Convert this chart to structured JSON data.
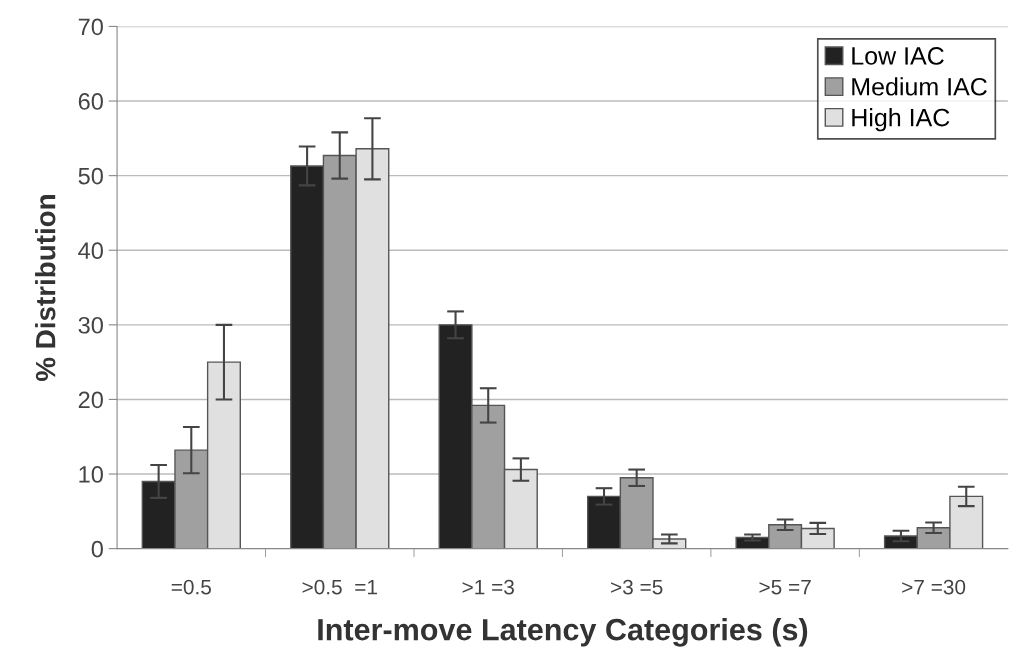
{
  "chart_data": {
    "type": "bar",
    "xlabel": "Inter-move Latency Categories (s)",
    "ylabel": "% Distribution",
    "categories": [
      "=0.5",
      ">0.5  =1",
      ">1 =3",
      ">3 =5",
      ">5 =7",
      ">7 =30"
    ],
    "series": [
      {
        "name": "Low IAC",
        "color": "#222222",
        "values": [
          9,
          51.3,
          30,
          7,
          1.5,
          1.7
        ],
        "errors": [
          2.2,
          2.6,
          1.8,
          1.1,
          0.4,
          0.7
        ]
      },
      {
        "name": "Medium IAC",
        "color": "#a0a0a0",
        "values": [
          13.2,
          52.7,
          19.2,
          9.5,
          3.2,
          2.8
        ],
        "errors": [
          3.1,
          3.1,
          2.3,
          1.1,
          0.7,
          0.7
        ]
      },
      {
        "name": "High IAC",
        "color": "#e0e0e0",
        "values": [
          25,
          53.6,
          10.6,
          1.3,
          2.7,
          7.0
        ],
        "errors": [
          5,
          4.1,
          1.5,
          0.6,
          0.75,
          1.3
        ]
      }
    ],
    "ylim": [
      0,
      70
    ],
    "yticks": [
      0,
      10,
      20,
      30,
      40,
      50,
      60,
      70
    ],
    "grid": "y",
    "legend": "top right"
  }
}
